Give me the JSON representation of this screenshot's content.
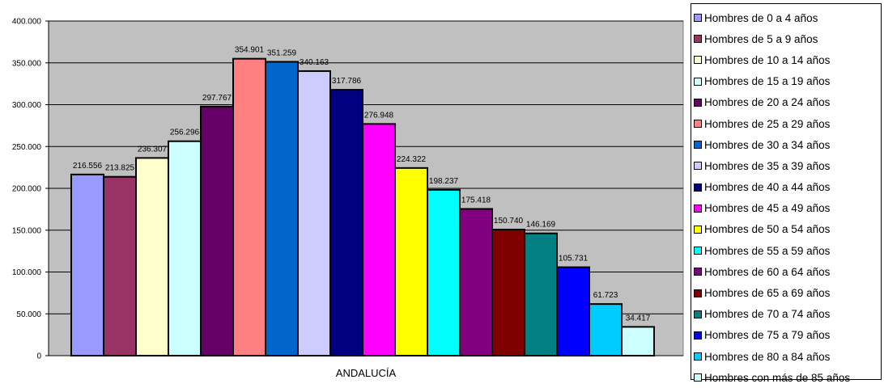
{
  "chart_data": {
    "type": "bar",
    "categories": [
      "ANDALUCÍA"
    ],
    "xlabel": "",
    "ylabel": "",
    "ylim": [
      0,
      400000
    ],
    "yticks": [
      0,
      50000,
      100000,
      150000,
      200000,
      250000,
      300000,
      350000,
      400000
    ],
    "ytick_labels": [
      "0",
      "50.000",
      "100.000",
      "150.000",
      "200.000",
      "250.000",
      "300.000",
      "350.000",
      "400.000"
    ],
    "x_axis_label": "ANDALUCÍA",
    "grid": true,
    "legend_position": "right",
    "plot_background": "#c0c0c0",
    "series": [
      {
        "name": "Hombres de 0 a 4 años",
        "values": [
          216556
        ],
        "label": "216.556",
        "color": "#9999ff"
      },
      {
        "name": "Hombres de 5 a 9 años",
        "values": [
          213825
        ],
        "label": "213.825",
        "color": "#993366"
      },
      {
        "name": "Hombres de 10 a 14 años",
        "values": [
          236307
        ],
        "label": "236.307",
        "color": "#ffffcc"
      },
      {
        "name": "Hombres de 15 a 19 años",
        "values": [
          256296
        ],
        "label": "256.296",
        "color": "#ccffff"
      },
      {
        "name": "Hombres de 20 a 24 años",
        "values": [
          297767
        ],
        "label": "297.767",
        "color": "#660066"
      },
      {
        "name": "Hombres de 25 a 29 años",
        "values": [
          354901
        ],
        "label": "354.901",
        "color": "#ff8080"
      },
      {
        "name": "Hombres de 30 a 34 años",
        "values": [
          351259
        ],
        "label": "351.259",
        "color": "#0066cc"
      },
      {
        "name": "Hombres de 35 a 39 años",
        "values": [
          340163
        ],
        "label": "340.163",
        "color": "#ccccff"
      },
      {
        "name": "Hombres de 40 a 44 años",
        "values": [
          317786
        ],
        "label": "317.786",
        "color": "#000080"
      },
      {
        "name": "Hombres de 45 a 49 años",
        "values": [
          276948
        ],
        "label": "276.948",
        "color": "#ff00ff"
      },
      {
        "name": "Hombres de 50 a 54 años",
        "values": [
          224322
        ],
        "label": "224.322",
        "color": "#ffff00"
      },
      {
        "name": "Hombres de 55 a 59 años",
        "values": [
          198237
        ],
        "label": "198.237",
        "color": "#00ffff"
      },
      {
        "name": "Hombres de 60 a 64 años",
        "values": [
          175418
        ],
        "label": "175.418",
        "color": "#800080"
      },
      {
        "name": "Hombres de 65 a 69 años",
        "values": [
          150740
        ],
        "label": "150.740",
        "color": "#800000"
      },
      {
        "name": "Hombres de 70 a 74 años",
        "values": [
          146169
        ],
        "label": "146.169",
        "color": "#008080"
      },
      {
        "name": "Hombres de 75 a 79 años",
        "values": [
          105731
        ],
        "label": "105.731",
        "color": "#0000ff"
      },
      {
        "name": "Hombres de 80 a 84 años",
        "values": [
          61723
        ],
        "label": "61.723",
        "color": "#00ccff"
      },
      {
        "name": "Hombres con más de 85 años",
        "values": [
          34417
        ],
        "label": "34.417",
        "color": "#ccffff"
      }
    ]
  }
}
